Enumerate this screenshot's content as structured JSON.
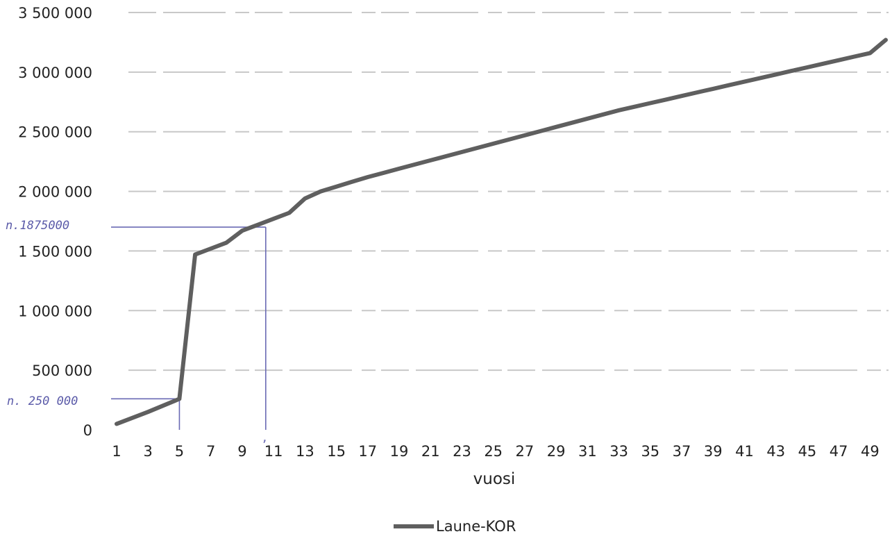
{
  "chart_data": {
    "type": "line",
    "title": "",
    "xlabel": "vuosi",
    "ylabel": "",
    "ylim": [
      0,
      3500000
    ],
    "yticks": [
      0,
      500000,
      1000000,
      1500000,
      2000000,
      2500000,
      3000000,
      3500000
    ],
    "ytick_labels": [
      "0",
      "500 000",
      "1 000 000",
      "1 500 000",
      "2 000 000",
      "2 500 000",
      "3 000 000",
      "3 500 000"
    ],
    "xlim": [
      1,
      50
    ],
    "xtick_labels": [
      "1",
      "3",
      "5",
      "7",
      "9",
      "11",
      "13",
      "15",
      "17",
      "19",
      "21",
      "23",
      "25",
      "27",
      "29",
      "31",
      "33",
      "35",
      "37",
      "39",
      "41",
      "43",
      "45",
      "47",
      "49"
    ],
    "grid": true,
    "legend_position": "bottom",
    "series": [
      {
        "name": "Laune-KOR",
        "color": "#5f5f5f",
        "x": [
          1,
          2,
          3,
          4,
          5,
          6,
          7,
          8,
          9,
          10,
          11,
          12,
          13,
          14,
          15,
          16,
          17,
          18,
          19,
          20,
          21,
          22,
          23,
          24,
          25,
          26,
          27,
          28,
          29,
          30,
          31,
          32,
          33,
          34,
          35,
          36,
          37,
          38,
          39,
          40,
          41,
          42,
          43,
          44,
          45,
          46,
          47,
          48,
          49,
          50
        ],
        "values": [
          50000,
          100000,
          150000,
          205000,
          260000,
          1470000,
          1520000,
          1570000,
          1670000,
          1720000,
          1770000,
          1820000,
          1940000,
          2000000,
          2040000,
          2080000,
          2120000,
          2155000,
          2190000,
          2225000,
          2260000,
          2295000,
          2330000,
          2365000,
          2400000,
          2435000,
          2470000,
          2505000,
          2540000,
          2575000,
          2610000,
          2645000,
          2680000,
          2710000,
          2740000,
          2770000,
          2800000,
          2830000,
          2860000,
          2890000,
          2920000,
          2950000,
          2980000,
          3010000,
          3040000,
          3070000,
          3100000,
          3130000,
          3160000,
          3270000
        ]
      }
    ],
    "annotations": [
      {
        "text": "n.1875000",
        "x": 10.5,
        "y": 1700000
      },
      {
        "text": "n. 250 000",
        "x": 5,
        "y": 260000
      }
    ]
  },
  "legend": {
    "label": "Laune-KOR"
  },
  "annotations_text": {
    "high": "n.1875000",
    "low": "n. 250 000"
  }
}
